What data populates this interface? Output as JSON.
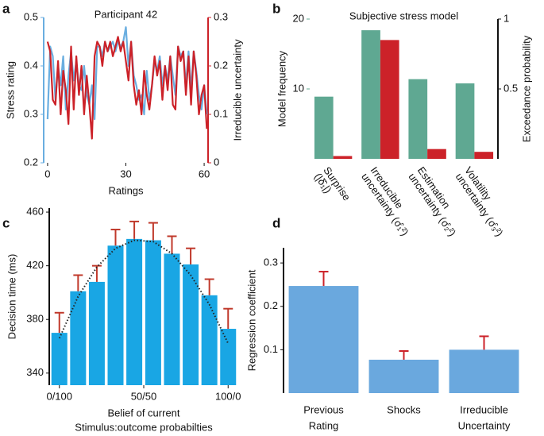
{
  "chart_data": [
    {
      "panel": "a",
      "type": "line",
      "title": "Participant 42",
      "xlabel": "Ratings",
      "x": [
        0,
        1,
        2,
        3,
        4,
        5,
        6,
        7,
        8,
        9,
        10,
        11,
        12,
        13,
        14,
        15,
        16,
        17,
        18,
        19,
        20,
        21,
        22,
        23,
        24,
        25,
        26,
        27,
        28,
        29,
        30,
        31,
        32,
        33,
        34,
        35,
        36,
        37,
        38,
        39,
        40,
        41,
        42,
        43,
        44,
        45,
        46,
        47,
        48,
        49,
        50,
        51,
        52,
        53,
        54,
        55,
        56,
        57,
        58,
        59,
        60,
        61
      ],
      "xlim": [
        -1.5,
        61.5
      ],
      "xticks": [
        0,
        30,
        60
      ],
      "ylim": [
        0.2,
        0.5
      ],
      "yticks": [
        0.2,
        0.3,
        0.4,
        0.5
      ],
      "y2lim": [
        0,
        0.3
      ],
      "y2ticks": [
        0,
        0.1,
        0.2,
        0.3
      ],
      "series": [
        {
          "name": "Stress rating",
          "color": "#6aaee0",
          "axis": "y",
          "values": [
            0.29,
            0.44,
            0.42,
            0.33,
            0.4,
            0.36,
            0.42,
            0.31,
            0.38,
            0.43,
            0.37,
            0.41,
            0.36,
            0.35,
            0.4,
            0.34,
            0.32,
            0.36,
            0.29,
            0.44,
            0.44,
            0.42,
            0.45,
            0.43,
            0.44,
            0.45,
            0.43,
            0.45,
            0.44,
            0.45,
            0.48,
            0.4,
            0.45,
            0.38,
            0.36,
            0.33,
            0.34,
            0.3,
            0.39,
            0.33,
            0.36,
            0.41,
            0.39,
            0.42,
            0.36,
            0.4,
            0.37,
            0.42,
            0.38,
            0.34,
            0.44,
            0.42,
            0.43,
            0.36,
            0.43,
            0.35,
            0.43,
            0.39,
            0.34,
            0.31,
            0.36,
            0.3
          ]
        },
        {
          "name": "Irreducible uncertainty",
          "color": "#cc2229",
          "axis": "y2",
          "values": [
            0.25,
            0.23,
            0.13,
            0.12,
            0.21,
            0.1,
            0.19,
            0.15,
            0.08,
            0.24,
            0.11,
            0.22,
            0.14,
            0.2,
            0.1,
            0.18,
            0.12,
            0.05,
            0.22,
            0.25,
            0.24,
            0.2,
            0.25,
            0.23,
            0.25,
            0.22,
            0.24,
            0.26,
            0.23,
            0.25,
            0.21,
            0.17,
            0.25,
            0.16,
            0.12,
            0.15,
            0.1,
            0.19,
            0.14,
            0.11,
            0.16,
            0.22,
            0.18,
            0.21,
            0.13,
            0.2,
            0.15,
            0.22,
            0.12,
            0.11,
            0.24,
            0.21,
            0.23,
            0.14,
            0.22,
            0.12,
            0.23,
            0.18,
            0.1,
            0.14,
            0.16,
            0.07
          ]
        }
      ]
    },
    {
      "panel": "b",
      "type": "bar",
      "title": "Subjective stress model",
      "categories": [
        [
          "Surprise",
          "(|δ̂₁|)"
        ],
        [
          "Irreducible",
          "uncertainty (σ̂₁²)"
        ],
        [
          "Estimation",
          "uncertainty (σ̂₂²)"
        ],
        [
          "Volatility",
          "uncertainty (σ̂₃²)"
        ]
      ],
      "ylim": [
        0,
        20
      ],
      "yticks": [
        10,
        20
      ],
      "y2lim": [
        0,
        1
      ],
      "y2ticks": [
        0.5,
        1
      ],
      "series": [
        {
          "name": "Model frequency",
          "color": "#5fa892",
          "axis": "y",
          "values": [
            8.9,
            18.4,
            11.4,
            10.8
          ]
        },
        {
          "name": "Exceedance probability",
          "color": "#cc2229",
          "axis": "y2",
          "values": [
            0.02,
            0.85,
            0.07,
            0.05
          ]
        }
      ]
    },
    {
      "panel": "c",
      "type": "bar",
      "ylabel": "Decision time (ms)",
      "xlabel": [
        "Belief of current",
        "Stimulus:outcome probabilties"
      ],
      "x": [
        0,
        11.1,
        22.2,
        33.3,
        44.4,
        55.6,
        66.7,
        77.8,
        88.9,
        100
      ],
      "xlim": [
        -6,
        106
      ],
      "xticks": [
        {
          "value": 0,
          "label": "0/100"
        },
        {
          "value": 50,
          "label": "50/50"
        },
        {
          "value": 100,
          "label": "100/0"
        }
      ],
      "ylim": [
        331,
        463
      ],
      "yticks": [
        340,
        380,
        420,
        460
      ],
      "values": [
        370,
        401,
        408,
        435,
        440,
        439,
        429,
        421,
        398,
        373
      ],
      "errors": [
        15,
        12,
        12,
        12,
        13,
        13,
        13,
        12,
        12,
        15
      ],
      "fit": [
        366,
        397,
        419,
        433,
        439,
        438,
        429,
        413,
        391,
        362
      ],
      "color": "#19a6e4",
      "error_color": "#c0392b"
    },
    {
      "panel": "d",
      "type": "bar",
      "ylabel": "Regression coefficient",
      "categories": [
        [
          "Previous",
          "Rating"
        ],
        [
          "Shocks"
        ],
        [
          "Irreducible",
          "Uncertainty"
        ]
      ],
      "ylim": [
        0,
        0.335
      ],
      "yticks": [
        0.1,
        0.2,
        0.3
      ],
      "values": [
        0.247,
        0.077,
        0.1
      ],
      "errors": [
        0.033,
        0.02,
        0.031
      ],
      "color": "#6aa8de",
      "error_color": "#cc2229"
    }
  ]
}
